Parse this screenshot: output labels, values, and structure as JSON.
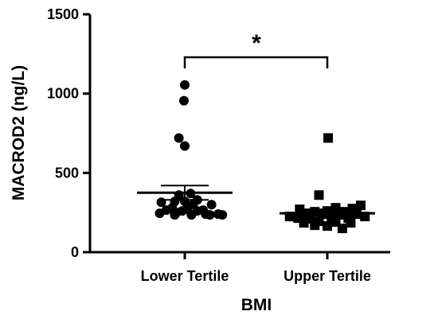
{
  "chart_data": {
    "type": "scatter",
    "title": "",
    "xlabel": "BMI",
    "ylabel": "MACROD2 (ng/L)",
    "ylim": [
      0,
      1500
    ],
    "yticks": [
      0,
      500,
      1000,
      1500
    ],
    "categories": [
      "Lower Tertile",
      "Upper Tertile"
    ],
    "significance": "*",
    "grid": false,
    "groups": [
      {
        "category": "Lower Tertile",
        "marker": "circle",
        "mean": 375,
        "sem_upper": 420,
        "sem_lower": 330,
        "points": [
          {
            "x": 0.0,
            "y": 1055
          },
          {
            "x": -0.01,
            "y": 955
          },
          {
            "x": -0.07,
            "y": 720
          },
          {
            "x": 0.0,
            "y": 670
          },
          {
            "x": 0.07,
            "y": 370
          },
          {
            "x": -0.07,
            "y": 360
          },
          {
            "x": 0.15,
            "y": 330
          },
          {
            "x": 0.0,
            "y": 320
          },
          {
            "x": -0.12,
            "y": 320
          },
          {
            "x": 0.1,
            "y": 300
          },
          {
            "x": 0.32,
            "y": 300
          },
          {
            "x": -0.28,
            "y": 315
          },
          {
            "x": -0.15,
            "y": 280
          },
          {
            "x": 0.03,
            "y": 270
          },
          {
            "x": -0.03,
            "y": 260
          },
          {
            "x": 0.22,
            "y": 265
          },
          {
            "x": -0.22,
            "y": 265
          },
          {
            "x": 0.15,
            "y": 260
          },
          {
            "x": -0.1,
            "y": 250
          },
          {
            "x": -0.3,
            "y": 245
          },
          {
            "x": 0.25,
            "y": 240
          },
          {
            "x": 0.4,
            "y": 240
          },
          {
            "x": 0.08,
            "y": 235
          },
          {
            "x": -0.12,
            "y": 235
          },
          {
            "x": 0.3,
            "y": 235
          },
          {
            "x": 0.45,
            "y": 235
          }
        ]
      },
      {
        "category": "Upper Tertile",
        "marker": "square",
        "mean": 245,
        "sem_upper": 270,
        "sem_lower": 215,
        "points": [
          {
            "x": 0.01,
            "y": 720
          },
          {
            "x": -0.1,
            "y": 360
          },
          {
            "x": 0.4,
            "y": 295
          },
          {
            "x": -0.33,
            "y": 270
          },
          {
            "x": 0.3,
            "y": 275
          },
          {
            "x": 0.1,
            "y": 280
          },
          {
            "x": 0.0,
            "y": 260
          },
          {
            "x": -0.15,
            "y": 255
          },
          {
            "x": 0.2,
            "y": 255
          },
          {
            "x": -0.25,
            "y": 240
          },
          {
            "x": -0.05,
            "y": 240
          },
          {
            "x": 0.15,
            "y": 235
          },
          {
            "x": 0.35,
            "y": 240
          },
          {
            "x": 0.45,
            "y": 225
          },
          {
            "x": -0.45,
            "y": 225
          },
          {
            "x": -0.35,
            "y": 215
          },
          {
            "x": -0.2,
            "y": 210
          },
          {
            "x": 0.05,
            "y": 210
          },
          {
            "x": 0.25,
            "y": 215
          },
          {
            "x": -0.1,
            "y": 195
          },
          {
            "x": 0.1,
            "y": 190
          },
          {
            "x": 0.28,
            "y": 185
          },
          {
            "x": -0.28,
            "y": 185
          },
          {
            "x": 0.0,
            "y": 165
          },
          {
            "x": 0.18,
            "y": 150
          },
          {
            "x": -0.15,
            "y": 170
          }
        ]
      }
    ]
  }
}
